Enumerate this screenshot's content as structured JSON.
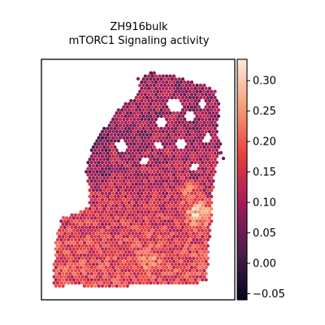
{
  "chart_data": {
    "type": "heatmap",
    "title": "ZH916bulk",
    "subtitle": "mTORC1 Signaling activity",
    "xlabel": "",
    "ylabel": "",
    "colorbar": {
      "ticks": [
        -0.05,
        0.0,
        0.05,
        0.1,
        0.15,
        0.2,
        0.25,
        0.3
      ],
      "tick_labels": [
        "−0.05",
        "0.00",
        "0.05",
        "0.10",
        "0.15",
        "0.20",
        "0.25",
        "0.30"
      ],
      "vmin": -0.06,
      "vmax": 0.335,
      "colormap": "rocket",
      "colormap_stops": [
        "#03051a",
        "#4c1d4b",
        "#a11a5b",
        "#e83f3f",
        "#f69c73",
        "#faebdd"
      ]
    },
    "regions": [
      {
        "name": "upper tissue",
        "mean_value": 0.09
      },
      {
        "name": "lower tissue",
        "mean_value": 0.17
      },
      {
        "name": "right hotspot",
        "mean_value": 0.3
      },
      {
        "name": "lower-center hotspot",
        "mean_value": 0.25
      }
    ]
  }
}
